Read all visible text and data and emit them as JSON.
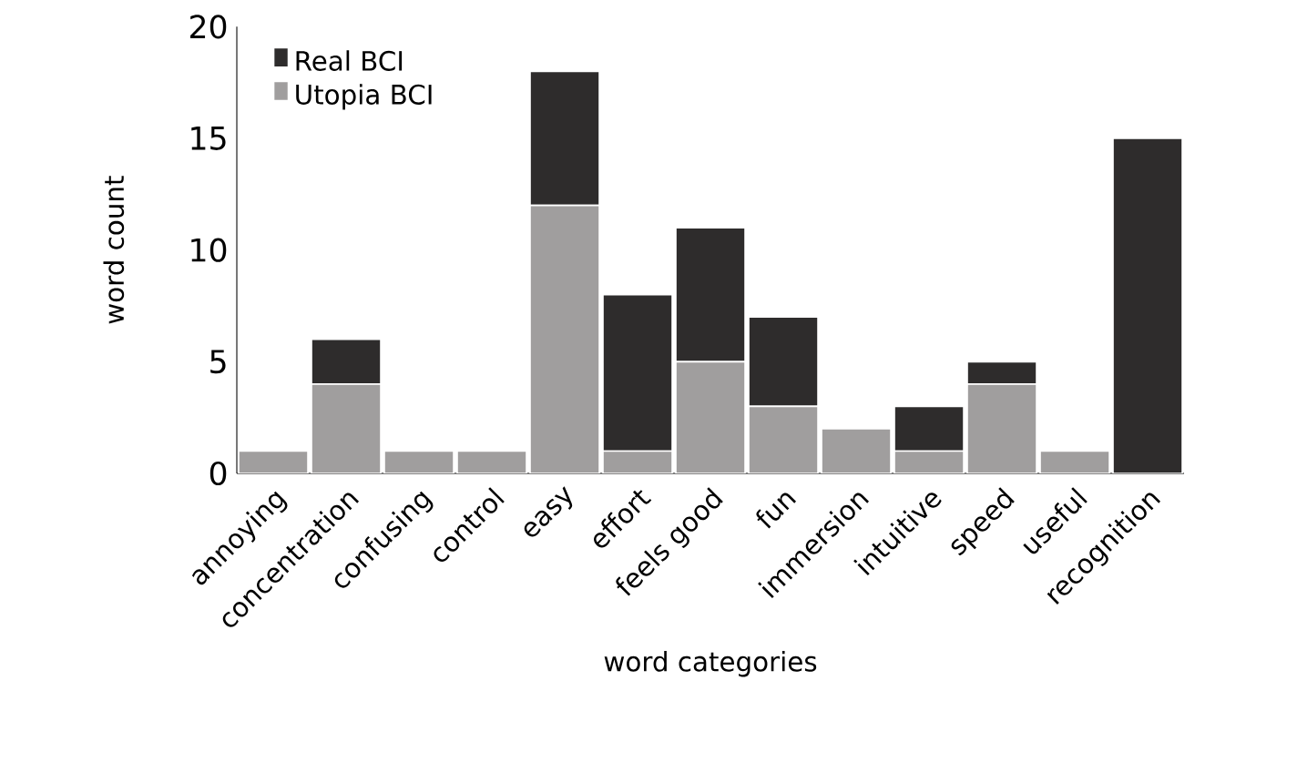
{
  "chart_data": {
    "type": "bar",
    "stacked": true,
    "xlabel": "word categories",
    "ylabel": "word count",
    "categories": [
      "annoying",
      "concentration",
      "confusing",
      "control",
      "easy",
      "effort",
      "feels good",
      "fun",
      "immersion",
      "intuitive",
      "speed",
      "useful",
      "recognition"
    ],
    "series": [
      {
        "name": "Utopia BCI",
        "color": "#a09e9e",
        "values": [
          1,
          4,
          1,
          1,
          12,
          1,
          5,
          3,
          2,
          1,
          4,
          1,
          0
        ]
      },
      {
        "name": "Real BCI",
        "color": "#2e2c2c",
        "values": [
          0,
          2,
          0,
          0,
          6,
          7,
          6,
          4,
          0,
          2,
          1,
          0,
          15
        ]
      }
    ],
    "ylim": [
      0,
      20
    ],
    "yticks": [
      0,
      5,
      10,
      15,
      20
    ],
    "grid": false,
    "legend": "top left"
  }
}
